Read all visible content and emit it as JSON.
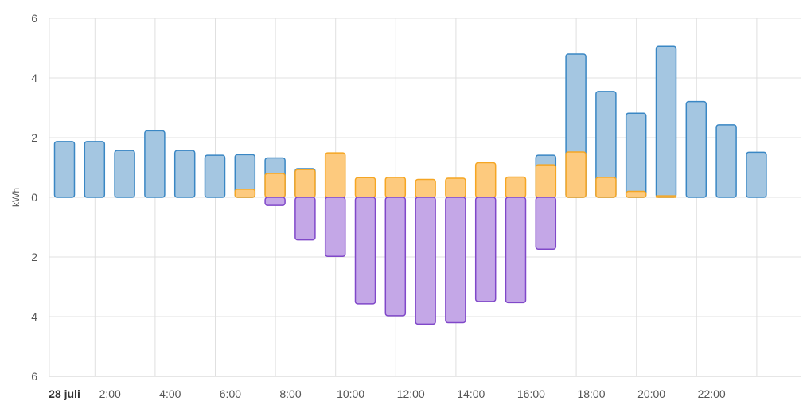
{
  "chart_data": {
    "type": "bar",
    "ylabel": "kWh",
    "ylim": [
      -6,
      6
    ],
    "yticks": [
      "6",
      "4",
      "2",
      "0",
      "2",
      "4",
      "6"
    ],
    "xlabels": [
      {
        "label": "28 juli",
        "hour": 0,
        "bold": true
      },
      {
        "label": "2:00",
        "hour": 2
      },
      {
        "label": "4:00",
        "hour": 4
      },
      {
        "label": "6:00",
        "hour": 6
      },
      {
        "label": "8:00",
        "hour": 8
      },
      {
        "label": "10:00",
        "hour": 10
      },
      {
        "label": "12:00",
        "hour": 12
      },
      {
        "label": "14:00",
        "hour": 14
      },
      {
        "label": "16:00",
        "hour": 16
      },
      {
        "label": "18:00",
        "hour": 18
      },
      {
        "label": "20:00",
        "hour": 20
      },
      {
        "label": "22:00",
        "hour": 22
      }
    ],
    "hours": [
      0,
      1,
      2,
      3,
      4,
      5,
      6,
      7,
      8,
      9,
      10,
      11,
      12,
      13,
      14,
      15,
      16,
      17,
      18,
      19,
      20,
      21,
      22,
      23
    ],
    "series": [
      {
        "key": "blue",
        "color": "#3a87c4",
        "fill": "#a4c6e1",
        "values": [
          1.87,
          1.87,
          1.57,
          2.23,
          1.57,
          1.41,
          1.43,
          1.32,
          0.96,
          0,
          0,
          0,
          0,
          0,
          0,
          0,
          1.41,
          4.8,
          3.55,
          2.82,
          5.06,
          3.21,
          2.43,
          1.51
        ]
      },
      {
        "key": "orange",
        "color": "#f5a623",
        "fill": "#fdca7e",
        "values": [
          0,
          0,
          0,
          0,
          0,
          0,
          0.27,
          0.8,
          0.93,
          1.49,
          0.66,
          0.67,
          0.6,
          0.64,
          1.16,
          0.68,
          1.09,
          1.52,
          0.67,
          0.2,
          0.05,
          0,
          0,
          0
        ]
      },
      {
        "key": "purple",
        "color": "#8048c9",
        "fill": "#c4a7e7",
        "values": [
          0,
          0,
          0,
          0,
          0,
          0,
          0,
          -0.27,
          -1.43,
          -1.98,
          -3.57,
          -3.97,
          -4.25,
          -4.2,
          -3.49,
          -3.53,
          -1.74,
          0,
          0,
          0,
          0,
          0,
          0,
          0
        ]
      }
    ]
  }
}
